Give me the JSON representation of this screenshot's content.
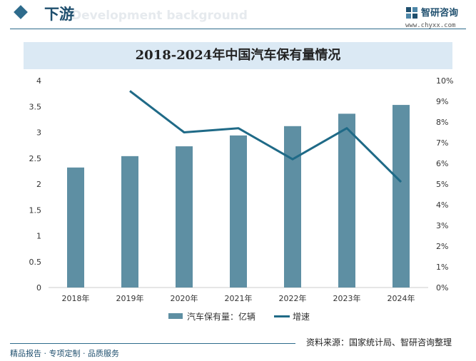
{
  "header": {
    "section_title": "下游",
    "watermark_text": "Development background",
    "logo_name": "智研咨询",
    "logo_url": "www.chyxx.com"
  },
  "chart_title": "2018-2024年中国汽车保有量情况",
  "chart_data": {
    "type": "bar",
    "title": "2018-2024年中国汽车保有量情况",
    "categories": [
      "2018年",
      "2019年",
      "2020年",
      "2021年",
      "2022年",
      "2023年",
      "2024年"
    ],
    "series": [
      {
        "name": "汽车保有量：亿辆",
        "type": "bar",
        "axis": "left",
        "values": [
          2.32,
          2.54,
          2.73,
          2.94,
          3.12,
          3.36,
          3.53
        ]
      },
      {
        "name": "增速",
        "type": "line",
        "axis": "right",
        "values": [
          null,
          9.5,
          7.5,
          7.7,
          6.2,
          7.7,
          5.1
        ]
      }
    ],
    "y_left": {
      "min": 0,
      "max": 4,
      "ticks": [
        "0",
        "0.5",
        "1",
        "1.5",
        "2",
        "2.5",
        "3",
        "3.5",
        "4"
      ]
    },
    "y_right": {
      "min": 0,
      "max": 10,
      "ticks": [
        "0%",
        "1%",
        "2%",
        "3%",
        "4%",
        "5%",
        "6%",
        "7%",
        "8%",
        "9%",
        "10%"
      ]
    },
    "grid": false,
    "legend": "bottom",
    "colors": {
      "bar": "#5e8fa3",
      "line": "#1f6a87"
    }
  },
  "legend": {
    "bar_label": "汽车保有量：亿辆",
    "line_label": "增速"
  },
  "source": "资料来源：国家统计局、智研咨询整理",
  "footer": "精品报告 · 专项定制 · 品质服务"
}
